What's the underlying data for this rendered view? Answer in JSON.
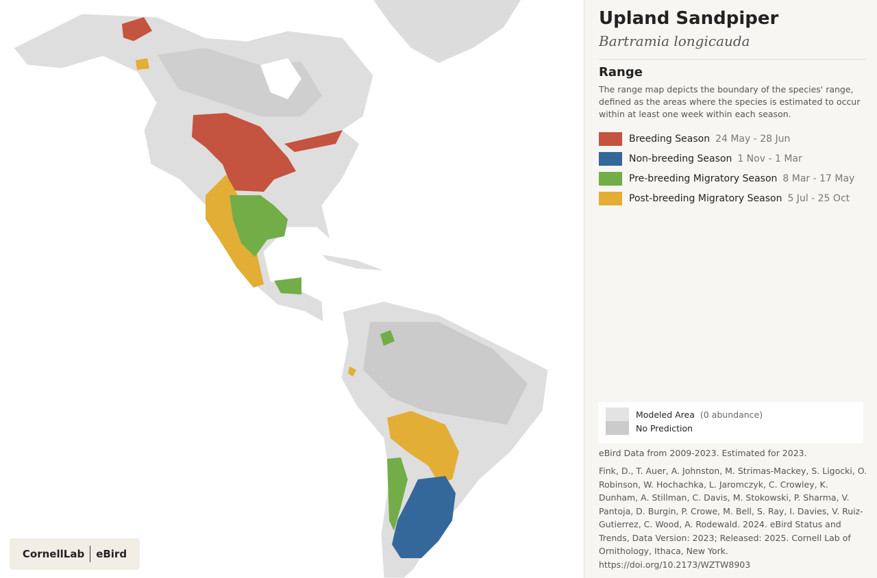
{
  "header": {
    "title": "Upland Sandpiper",
    "scientific_name": "Bartramia longicauda"
  },
  "range": {
    "heading": "Range",
    "description": "The range map depicts the boundary of the species' range, defined as the areas where the species is estimated to occur within at least one week within each season.",
    "seasons": [
      {
        "name": "Breeding Season",
        "dates": "24 May - 28 Jun",
        "color": "#c4533f"
      },
      {
        "name": "Non-breeding Season",
        "dates": "1 Nov - 1 Mar",
        "color": "#35689a"
      },
      {
        "name": "Pre-breeding Migratory Season",
        "dates": "8 Mar - 17 May",
        "color": "#72ad47"
      },
      {
        "name": "Post-breeding Migratory Season",
        "dates": "5 Jul - 25 Oct",
        "color": "#e3ae35"
      }
    ]
  },
  "map_legend": [
    {
      "label": "Modeled Area",
      "note": "(0 abundance)",
      "color": "#e3e3e3"
    },
    {
      "label": "No Prediction",
      "color": "#cbcbcb"
    }
  ],
  "data_note": "eBird Data from 2009-2023. Estimated for 2023.",
  "citation": "Fink, D., T. Auer, A. Johnston, M. Strimas-Mackey, S. Ligocki, O. Robinson, W. Hochachka, L. Jaromczyk, C. Crowley, K. Dunham, A. Stillman, C. Davis, M. Stokowski, P. Sharma, V. Pantoja, D. Burgin, P. Crowe, M. Bell, S. Ray, I. Davies, V. Ruiz-Gutierrez, C. Wood, A. Rodewald. 2024. eBird Status and Trends, Data Version: 2023; Released: 2025. Cornell Lab of Ornithology, Ithaca, New York. https://doi.org/10.2173/WZTW8903",
  "logo": {
    "left": "CornellLab",
    "right": "eBird"
  }
}
